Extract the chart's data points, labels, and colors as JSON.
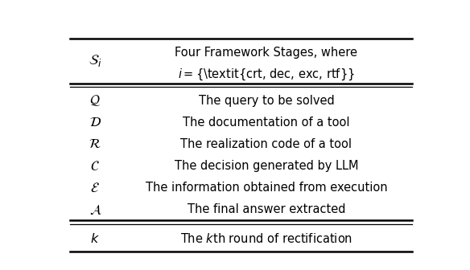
{
  "bg_color": "#ffffff",
  "figsize": [
    5.84,
    3.36
  ],
  "dpi": 100,
  "header_col1": "$\\mathcal{S}_i$",
  "header_col2_line1": "Four Framework Stages, where",
  "header_col2_line2": "$i =\\{$\\textit{crt, dec, exc, rtf}$\\}$",
  "rows": [
    [
      "$\\mathcal{Q}$",
      "The query to be solved"
    ],
    [
      "$\\mathcal{D}$",
      "The documentation of a tool"
    ],
    [
      "$\\mathcal{R}$",
      "The realization code of a tool"
    ],
    [
      "$\\mathcal{C}$",
      "The decision generated by LLM"
    ],
    [
      "$\\mathcal{E}$",
      "The information obtained from execution"
    ],
    [
      "$\\mathcal{A}$",
      "The final answer extracted"
    ]
  ],
  "footer_col1": "$k$",
  "footer_col2": "The $k$th round of rectification",
  "font_size": 10.5,
  "header_font_size": 10.5
}
